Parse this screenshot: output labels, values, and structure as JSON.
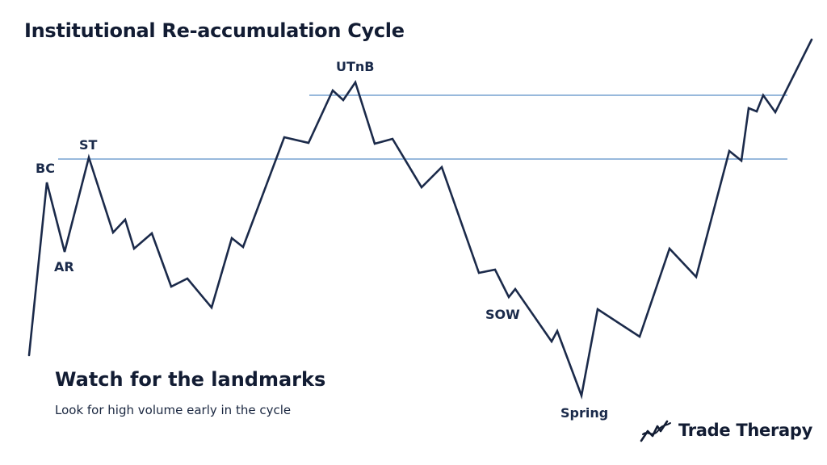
{
  "title": "Institutional Re-accumulation Cycle",
  "footer": {
    "heading": "Watch for the landmarks",
    "subheading": "Look for high volume early in the cycle"
  },
  "brand": {
    "name": "Trade Therapy",
    "logo_icon": "trend-line-logo-icon"
  },
  "landmarks": {
    "bc": "BC",
    "ar": "AR",
    "st": "ST",
    "utnb": "UTnB",
    "sow": "SOW",
    "spring": "Spring"
  },
  "colors": {
    "price_line": "#1b2a4a",
    "level_lines": "#5b8fc7",
    "text": "#121c33"
  }
}
